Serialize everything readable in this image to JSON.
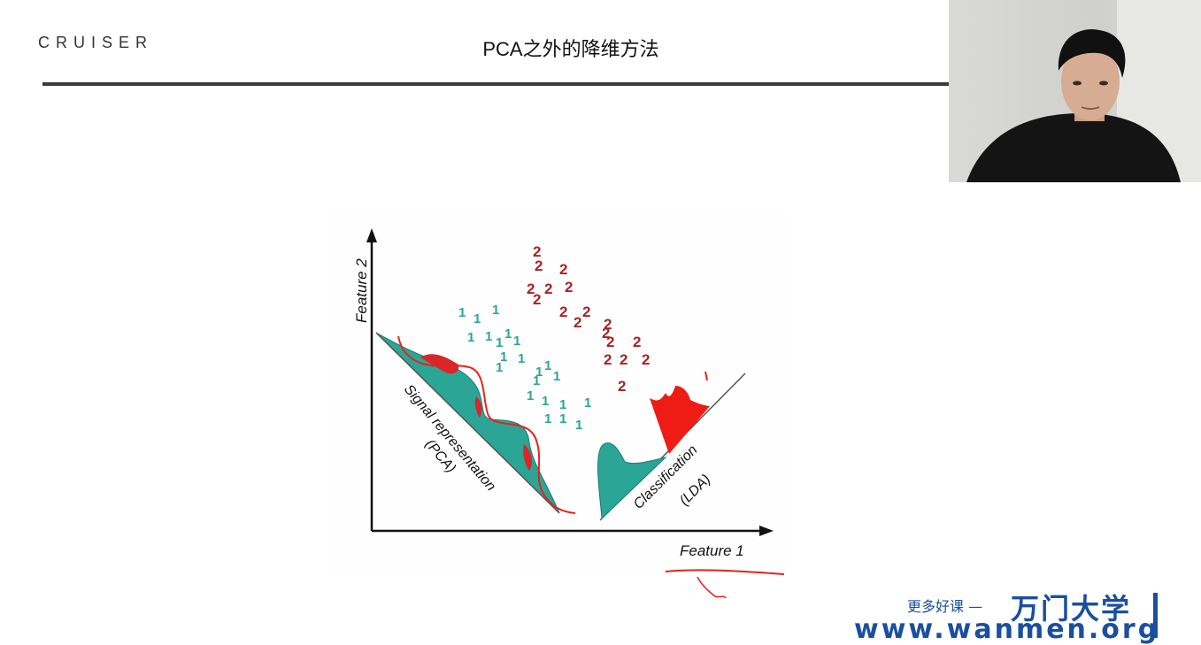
{
  "header": {
    "logo": "CRUISER",
    "title": "PCA之外的降维方法"
  },
  "diagram": {
    "x_axis_label": "Feature 1",
    "y_axis_label": "Feature 2",
    "pca_label_line1": "Signal representation",
    "pca_label_line2": "(PCA)",
    "lda_label_line1": "Classification",
    "lda_label_line2": "(LDA)",
    "class1_symbol": "1",
    "class2_symbol": "2",
    "class1_color": "#2aa596",
    "class2_color": "#a82424",
    "annotation_color": "#e8221b"
  },
  "watermark": {
    "cta": "更多好课 —",
    "brand": "万门大学",
    "url": "www.wanmen.org"
  }
}
